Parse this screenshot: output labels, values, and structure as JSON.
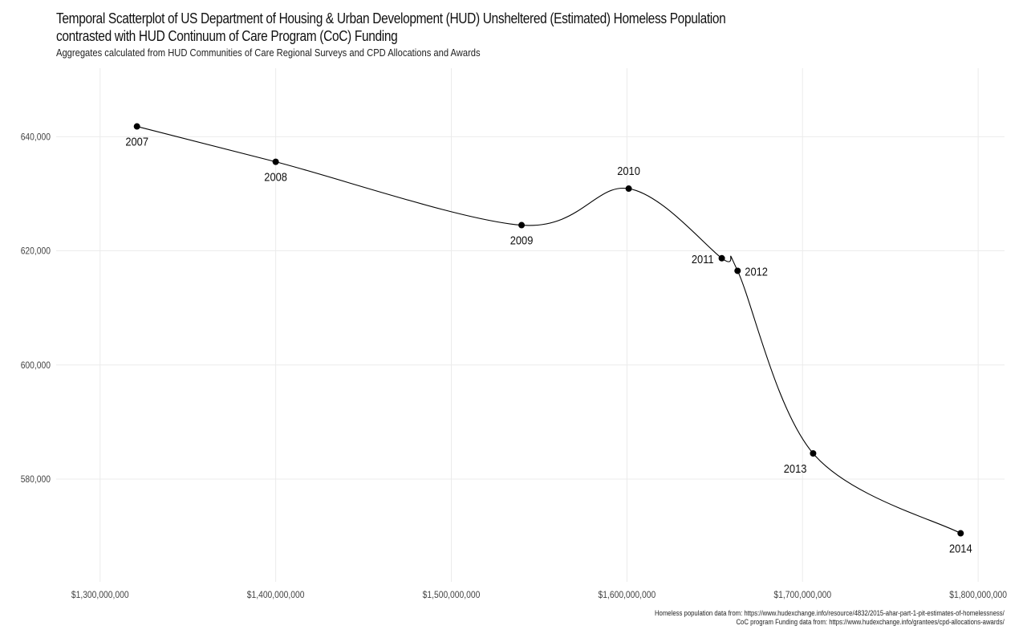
{
  "header": {
    "title_line1": "Temporal Scatterplot of US Department of Housing & Urban Development (HUD) Unsheltered (Estimated) Homeless Population",
    "title_line2": "contrasted with HUD Continuum of Care Program (CoC) Funding",
    "subtitle": "Aggregates calculated from HUD Communities of Care Regional Surveys and CPD Allocations and Awards"
  },
  "caption": {
    "line1": "Homeless population data from: https://www.hudexchange.info/resource/4832/2015-ahar-part-1-pit-estimates-of-homelessness/",
    "line2": "CoC program Funding data from: https://www.hudexchange.info/grantees/cpd-allocations-awards/"
  },
  "chart_data": {
    "type": "scatter",
    "title": "Temporal Scatterplot of US Department of Housing & Urban Development (HUD) Unsheltered (Estimated) Homeless Population contrasted with HUD Continuum of Care Program (CoC) Funding",
    "subtitle": "Aggregates calculated from HUD Communities of Care Regional Surveys and CPD Allocations and Awards",
    "xlabel": "",
    "ylabel": "",
    "xlim": [
      1275000000,
      1815000000
    ],
    "ylim": [
      562000,
      652000
    ],
    "x_ticks": [
      1300000000,
      1400000000,
      1500000000,
      1600000000,
      1700000000,
      1800000000
    ],
    "x_tick_labels": [
      "$1,300,000,000",
      "$1,400,000,000",
      "$1,500,000,000",
      "$1,600,000,000",
      "$1,700,000,000",
      "$1,800,000,000"
    ],
    "y_ticks": [
      580000,
      600000,
      620000,
      640000
    ],
    "y_tick_labels": [
      "580,000",
      "600,000",
      "620,000",
      "640,000"
    ],
    "grid": true,
    "connected": true,
    "points": [
      {
        "label": "2007",
        "x": 1321000000,
        "y": 641800,
        "label_pos": "below"
      },
      {
        "label": "2008",
        "x": 1400000000,
        "y": 635600,
        "label_pos": "below"
      },
      {
        "label": "2009",
        "x": 1540000000,
        "y": 624500,
        "label_pos": "below"
      },
      {
        "label": "2010",
        "x": 1601000000,
        "y": 630900,
        "label_pos": "above"
      },
      {
        "label": "2011",
        "x": 1654000000,
        "y": 618700,
        "label_pos": "left"
      },
      {
        "label": "2012",
        "x": 1663000000,
        "y": 616500,
        "label_pos": "right"
      },
      {
        "label": "2013",
        "x": 1706000000,
        "y": 584500,
        "label_pos": "below-left"
      },
      {
        "label": "2014",
        "x": 1790000000,
        "y": 570500,
        "label_pos": "below"
      }
    ],
    "colors": {
      "point": "#000000",
      "line": "#000000",
      "grid": "#ebebeb"
    }
  }
}
